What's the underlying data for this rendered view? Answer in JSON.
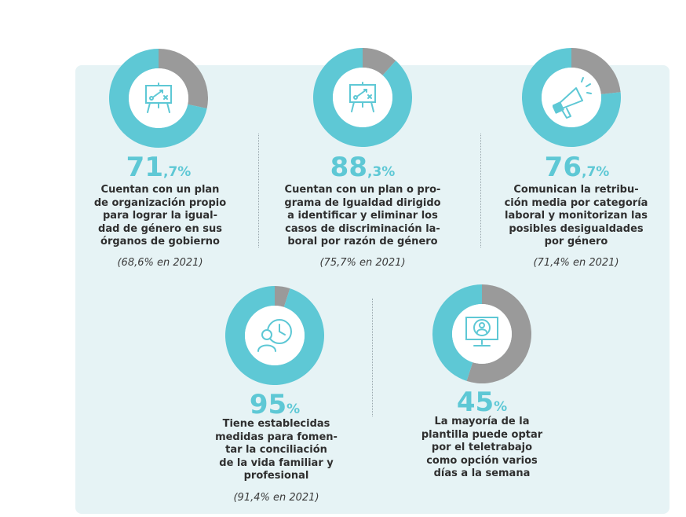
{
  "header_fragment": "",
  "colors": {
    "accent": "#5ec8d5",
    "rest": "#9a9a9a",
    "panel": "#e6f3f5"
  },
  "chart_data": [
    {
      "type": "pie",
      "values": [
        71.7,
        28.3
      ],
      "value_int": "71",
      "value_dec": ",7%",
      "description": "Cuentan con un plan de organización propio para lograr la igualdad de género en sus órganos de gobierno",
      "desc_lines": [
        "Cuentan con un plan",
        "de organización propio",
        "para lograr la igual-",
        "dad de género en sus",
        "órganos de gobierno"
      ],
      "previous": "(68,6% en 2021)",
      "icon": "strategy-board-icon"
    },
    {
      "type": "pie",
      "values": [
        88.3,
        11.7
      ],
      "value_int": "88",
      "value_dec": ",3%",
      "description": "Cuentan con un plan o programa de Igualdad dirigido a identificar y eliminar los casos de discriminación laboral por razón de género",
      "desc_lines": [
        "Cuentan con un plan o pro-",
        "grama de Igualdad dirigido",
        "a identificar y eliminar los",
        "casos de discriminación la-",
        "boral por razón de género"
      ],
      "previous": "(75,7% en 2021)",
      "icon": "strategy-board-icon"
    },
    {
      "type": "pie",
      "values": [
        76.7,
        23.3
      ],
      "value_int": "76",
      "value_dec": ",7%",
      "description": "Comunican la retribución media por categoría laboral y monitorizan las posibles desigualdades por género",
      "desc_lines": [
        "Comunican la retribu-",
        "ción media por categoría",
        "laboral y monitorizan las",
        "posibles desigualdades",
        "por género"
      ],
      "previous": "(71,4% en 2021)",
      "icon": "megaphone-icon"
    },
    {
      "type": "pie",
      "values": [
        95,
        5
      ],
      "value_int": "95",
      "value_dec": "%",
      "description": "Tiene establecidas medidas para fomentar la conciliación de la vida familiar y profesional",
      "desc_lines": [
        "Tiene establecidas",
        "medidas para fomen-",
        "tar la conciliación",
        "de la vida familiar y",
        "profesional"
      ],
      "previous": "(91,4% en 2021)",
      "icon": "person-clock-icon"
    },
    {
      "type": "pie",
      "values": [
        45,
        55
      ],
      "value_int": "45",
      "value_dec": "%",
      "description": "La mayoría de la plantilla puede optar por el teletrabajo como opción varios días a la semana",
      "desc_lines": [
        "La mayoría de la",
        "plantilla puede optar",
        "por el teletrabajo",
        "como opción varios",
        "días a la semana"
      ],
      "previous": "",
      "icon": "monitor-user-icon"
    }
  ]
}
